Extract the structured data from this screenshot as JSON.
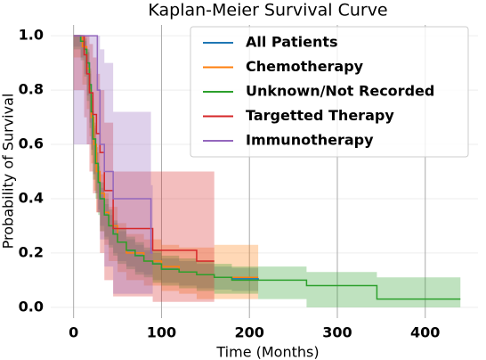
{
  "chart_data": {
    "type": "step",
    "title": "Kaplan-Meier Survival Curve",
    "x_label": "Time (Months)",
    "y_label": "Probability of Survival",
    "xlim": [
      -26,
      460
    ],
    "ylim": [
      -0.04,
      1.04
    ],
    "xticks": [
      0,
      100,
      200,
      300,
      400
    ],
    "yticks": [
      {
        "value": 0,
        "label": "0.0"
      },
      0.2,
      0.4,
      0.6,
      0.8,
      {
        "value": 1,
        "label": "1.0"
      }
    ],
    "grid": true,
    "legend": "upper right",
    "series": [
      {
        "name": "All Patients",
        "color": "#1f77b4",
        "x": [
          0,
          8,
          12,
          15,
          18,
          20,
          22,
          25,
          28,
          30,
          35,
          40,
          45,
          50,
          60,
          70,
          80,
          90,
          100,
          120,
          140,
          160,
          180,
          210
        ],
        "values": [
          1,
          0.98,
          0.95,
          0.9,
          0.82,
          0.72,
          0.62,
          0.53,
          0.46,
          0.4,
          0.34,
          0.3,
          0.27,
          0.24,
          0.21,
          0.19,
          0.17,
          0.16,
          0.14,
          0.13,
          0.12,
          0.11,
          0.105,
          0.1
        ],
        "lower": [
          1,
          0.96,
          0.92,
          0.86,
          0.78,
          0.68,
          0.58,
          0.49,
          0.42,
          0.36,
          0.3,
          0.26,
          0.23,
          0.2,
          0.17,
          0.15,
          0.13,
          0.12,
          0.1,
          0.09,
          0.08,
          0.07,
          0.065,
          0.06
        ],
        "upper": [
          1,
          1,
          0.98,
          0.94,
          0.86,
          0.76,
          0.66,
          0.57,
          0.5,
          0.44,
          0.38,
          0.34,
          0.31,
          0.28,
          0.25,
          0.23,
          0.21,
          0.2,
          0.18,
          0.17,
          0.16,
          0.15,
          0.145,
          0.14
        ]
      },
      {
        "name": "Chemotherapy",
        "color": "#ff7f0e",
        "x": [
          0,
          10,
          15,
          18,
          20,
          23,
          26,
          30,
          35,
          40,
          50,
          60,
          80,
          100,
          120,
          140,
          160,
          210
        ],
        "values": [
          1,
          0.96,
          0.88,
          0.8,
          0.7,
          0.6,
          0.5,
          0.42,
          0.35,
          0.3,
          0.24,
          0.2,
          0.17,
          0.15,
          0.13,
          0.12,
          0.11,
          0.11
        ],
        "lower": [
          1,
          0.92,
          0.82,
          0.73,
          0.63,
          0.53,
          0.43,
          0.35,
          0.28,
          0.23,
          0.17,
          0.13,
          0.1,
          0.08,
          0.06,
          0.05,
          0.03,
          0.03
        ],
        "upper": [
          1,
          1,
          0.94,
          0.87,
          0.77,
          0.67,
          0.57,
          0.49,
          0.42,
          0.37,
          0.31,
          0.27,
          0.25,
          0.23,
          0.22,
          0.22,
          0.23,
          0.23
        ]
      },
      {
        "name": "Unknown/Not Recorded",
        "color": "#2ca02c",
        "x": [
          0,
          8,
          12,
          15,
          18,
          20,
          22,
          25,
          28,
          30,
          35,
          40,
          45,
          50,
          60,
          70,
          80,
          90,
          100,
          120,
          140,
          160,
          180,
          210,
          265,
          345,
          440
        ],
        "values": [
          1,
          0.98,
          0.95,
          0.9,
          0.82,
          0.72,
          0.62,
          0.53,
          0.46,
          0.4,
          0.34,
          0.3,
          0.27,
          0.24,
          0.21,
          0.19,
          0.17,
          0.16,
          0.14,
          0.13,
          0.12,
          0.11,
          0.1,
          0.1,
          0.08,
          0.03,
          0.03
        ],
        "lower": [
          1,
          0.95,
          0.91,
          0.85,
          0.76,
          0.66,
          0.56,
          0.47,
          0.4,
          0.34,
          0.28,
          0.25,
          0.22,
          0.19,
          0.16,
          0.14,
          0.12,
          0.11,
          0.09,
          0.08,
          0.07,
          0.06,
          0.05,
          0.05,
          0.03,
          0,
          0
        ],
        "upper": [
          1,
          1,
          0.99,
          0.95,
          0.88,
          0.78,
          0.68,
          0.59,
          0.52,
          0.46,
          0.4,
          0.36,
          0.32,
          0.29,
          0.26,
          0.24,
          0.22,
          0.21,
          0.19,
          0.18,
          0.17,
          0.16,
          0.15,
          0.15,
          0.13,
          0.11,
          0.11
        ]
      },
      {
        "name": "Targetted Therapy",
        "color": "#d62728",
        "x": [
          0,
          12,
          15,
          18,
          22,
          26,
          30,
          35,
          45,
          90,
          140,
          160
        ],
        "values": [
          1,
          0.93,
          0.86,
          0.79,
          0.71,
          0.64,
          0.57,
          0.43,
          0.29,
          0.21,
          0.17,
          0.17
        ],
        "lower": [
          1,
          0.8,
          0.7,
          0.6,
          0.5,
          0.42,
          0.35,
          0.2,
          0.1,
          0.04,
          0.02,
          0.02
        ],
        "upper": [
          1,
          1,
          1,
          0.97,
          0.92,
          0.86,
          0.8,
          0.68,
          0.5,
          0.5,
          0.5,
          0.5
        ]
      },
      {
        "name": "Immunotherapy",
        "color": "#9467bd",
        "x": [
          0,
          27,
          30,
          35,
          45,
          88,
          90
        ],
        "values": [
          1,
          0.8,
          0.6,
          0.5,
          0.4,
          0.2,
          0.2
        ],
        "lower": [
          1,
          0.6,
          0.35,
          0.25,
          0.15,
          0.05,
          0.05
        ],
        "upper": [
          1,
          1,
          0.95,
          0.9,
          0.72,
          0.45,
          0.45
        ]
      }
    ]
  }
}
